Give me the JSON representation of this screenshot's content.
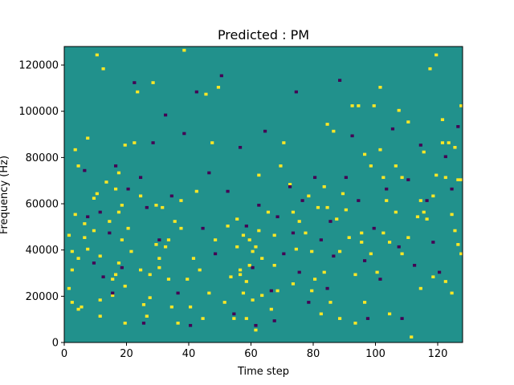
{
  "chart_data": {
    "type": "heatmap",
    "title": "Predicted : PM",
    "xlabel": "Time step",
    "ylabel": "Frequency (Hz)",
    "xlim": [
      0,
      128
    ],
    "ylim": [
      0,
      128000
    ],
    "x_ticks": [
      0,
      20,
      40,
      60,
      80,
      100,
      120
    ],
    "y_ticks": [
      0,
      20000,
      40000,
      60000,
      80000,
      100000,
      120000
    ],
    "x_tick_labels": [
      "0",
      "20",
      "40",
      "60",
      "80",
      "100",
      "120"
    ],
    "y_tick_labels": [
      "0",
      "20000",
      "40000",
      "60000",
      "80000",
      "100000",
      "120000"
    ],
    "grid": false,
    "colormap": "viridis",
    "colors": {
      "background": "#21918c",
      "high": "#fde725",
      "low": "#440154"
    },
    "cells_high": [
      [
        1,
        23
      ],
      [
        1,
        46
      ],
      [
        2,
        39
      ],
      [
        2,
        17
      ],
      [
        2,
        31
      ],
      [
        3,
        83
      ],
      [
        3,
        55
      ],
      [
        4,
        76
      ],
      [
        4,
        36
      ],
      [
        4,
        14
      ],
      [
        5,
        15
      ],
      [
        6,
        45
      ],
      [
        6,
        51
      ],
      [
        7,
        88
      ],
      [
        7,
        40
      ],
      [
        9,
        62
      ],
      [
        9,
        48
      ],
      [
        10,
        124
      ],
      [
        10,
        64
      ],
      [
        11,
        37
      ],
      [
        11,
        18
      ],
      [
        11,
        11
      ],
      [
        12,
        118
      ],
      [
        13,
        69
      ],
      [
        14,
        52
      ],
      [
        15,
        27
      ],
      [
        15,
        20
      ],
      [
        16,
        66
      ],
      [
        16,
        29
      ],
      [
        17,
        73
      ],
      [
        17,
        56
      ],
      [
        17,
        34
      ],
      [
        18,
        59
      ],
      [
        18,
        44
      ],
      [
        19,
        85
      ],
      [
        19,
        24
      ],
      [
        19,
        8
      ],
      [
        20,
        49
      ],
      [
        21,
        39
      ],
      [
        22,
        86
      ],
      [
        23,
        108
      ],
      [
        24,
        63
      ],
      [
        24,
        31
      ],
      [
        25,
        16
      ],
      [
        26,
        11
      ],
      [
        27,
        29
      ],
      [
        27,
        19
      ],
      [
        28,
        112
      ],
      [
        29,
        59
      ],
      [
        29,
        42
      ],
      [
        30,
        36
      ],
      [
        30,
        32
      ],
      [
        31,
        58
      ],
      [
        32,
        41
      ],
      [
        33,
        44
      ],
      [
        33,
        27
      ],
      [
        34,
        15
      ],
      [
        35,
        52
      ],
      [
        36,
        8
      ],
      [
        37,
        61
      ],
      [
        37,
        49
      ],
      [
        38,
        126
      ],
      [
        39,
        27
      ],
      [
        40,
        15
      ],
      [
        41,
        36
      ],
      [
        42,
        65
      ],
      [
        43,
        31
      ],
      [
        44,
        10
      ],
      [
        45,
        107
      ],
      [
        46,
        21
      ],
      [
        47,
        86
      ],
      [
        48,
        44
      ],
      [
        49,
        110
      ],
      [
        51,
        17
      ],
      [
        52,
        50
      ],
      [
        53,
        28
      ],
      [
        54,
        10
      ],
      [
        55,
        53
      ],
      [
        55,
        41
      ],
      [
        56,
        31
      ],
      [
        56,
        29
      ],
      [
        57,
        46
      ],
      [
        57,
        21
      ],
      [
        58,
        26
      ],
      [
        58,
        10
      ],
      [
        59,
        44
      ],
      [
        59,
        33
      ],
      [
        60,
        39
      ],
      [
        60,
        18
      ],
      [
        61,
        41
      ],
      [
        61,
        5
      ],
      [
        62,
        72
      ],
      [
        62,
        48
      ],
      [
        63,
        36
      ],
      [
        63,
        20
      ],
      [
        65,
        56
      ],
      [
        66,
        14
      ],
      [
        67,
        46
      ],
      [
        67,
        33
      ],
      [
        68,
        22
      ],
      [
        69,
        76
      ],
      [
        70,
        86
      ],
      [
        72,
        68
      ],
      [
        73,
        56
      ],
      [
        73,
        25
      ],
      [
        74,
        40
      ],
      [
        75,
        52
      ],
      [
        77,
        47
      ],
      [
        78,
        63
      ],
      [
        79,
        39
      ],
      [
        79,
        22
      ],
      [
        80,
        27
      ],
      [
        81,
        58
      ],
      [
        82,
        12
      ],
      [
        83,
        30
      ],
      [
        83,
        67
      ],
      [
        84,
        94
      ],
      [
        84,
        58
      ],
      [
        85,
        17
      ],
      [
        86,
        91
      ],
      [
        87,
        53
      ],
      [
        88,
        39
      ],
      [
        88,
        10
      ],
      [
        89,
        64
      ],
      [
        90,
        57
      ],
      [
        91,
        45
      ],
      [
        92,
        102
      ],
      [
        93,
        29
      ],
      [
        93,
        8
      ],
      [
        94,
        102
      ],
      [
        95,
        47
      ],
      [
        95,
        43
      ],
      [
        96,
        17
      ],
      [
        96,
        81
      ],
      [
        98,
        76
      ],
      [
        98,
        38
      ],
      [
        99,
        102
      ],
      [
        100,
        30
      ],
      [
        101,
        110
      ],
      [
        101,
        83
      ],
      [
        102,
        71
      ],
      [
        102,
        47
      ],
      [
        103,
        61
      ],
      [
        104,
        43
      ],
      [
        104,
        12
      ],
      [
        106,
        56
      ],
      [
        106,
        76
      ],
      [
        107,
        100
      ],
      [
        108,
        71
      ],
      [
        108,
        38
      ],
      [
        110,
        95
      ],
      [
        110,
        45
      ],
      [
        111,
        2
      ],
      [
        113,
        54
      ],
      [
        114,
        61
      ],
      [
        114,
        23
      ],
      [
        115,
        82
      ],
      [
        115,
        56
      ],
      [
        116,
        53
      ],
      [
        117,
        118
      ],
      [
        118,
        63
      ],
      [
        118,
        28
      ],
      [
        119,
        124
      ],
      [
        119,
        72
      ],
      [
        121,
        96
      ],
      [
        121,
        86
      ],
      [
        122,
        71
      ],
      [
        122,
        26
      ],
      [
        123,
        86
      ],
      [
        124,
        55
      ],
      [
        124,
        21
      ],
      [
        125,
        48
      ],
      [
        125,
        84
      ],
      [
        126,
        70
      ],
      [
        126,
        42
      ],
      [
        127,
        102
      ],
      [
        127,
        70
      ],
      [
        127,
        38
      ]
    ],
    "cells_low": [
      [
        6,
        74
      ],
      [
        7,
        54
      ],
      [
        9,
        34
      ],
      [
        11,
        56
      ],
      [
        12,
        28
      ],
      [
        14,
        47
      ],
      [
        15,
        21
      ],
      [
        16,
        76
      ],
      [
        18,
        32
      ],
      [
        20,
        66
      ],
      [
        22,
        112
      ],
      [
        24,
        71
      ],
      [
        25,
        8
      ],
      [
        26,
        58
      ],
      [
        28,
        86
      ],
      [
        30,
        44
      ],
      [
        32,
        98
      ],
      [
        34,
        63
      ],
      [
        36,
        21
      ],
      [
        38,
        90
      ],
      [
        40,
        7
      ],
      [
        42,
        108
      ],
      [
        44,
        49
      ],
      [
        46,
        73
      ],
      [
        48,
        38
      ],
      [
        50,
        115
      ],
      [
        52,
        65
      ],
      [
        54,
        12
      ],
      [
        56,
        84
      ],
      [
        58,
        50
      ],
      [
        60,
        32
      ],
      [
        61,
        7
      ],
      [
        62,
        59
      ],
      [
        64,
        91
      ],
      [
        66,
        22
      ],
      [
        67,
        9
      ],
      [
        68,
        54
      ],
      [
        70,
        38
      ],
      [
        72,
        67
      ],
      [
        73,
        47
      ],
      [
        74,
        108
      ],
      [
        75,
        30
      ],
      [
        76,
        61
      ],
      [
        78,
        17
      ],
      [
        80,
        71
      ],
      [
        82,
        44
      ],
      [
        84,
        23
      ],
      [
        85,
        52
      ],
      [
        86,
        37
      ],
      [
        88,
        113
      ],
      [
        90,
        71
      ],
      [
        92,
        89
      ],
      [
        94,
        61
      ],
      [
        96,
        35
      ],
      [
        97,
        10
      ],
      [
        99,
        49
      ],
      [
        101,
        27
      ],
      [
        103,
        66
      ],
      [
        105,
        92
      ],
      [
        107,
        41
      ],
      [
        108,
        10
      ],
      [
        110,
        70
      ],
      [
        112,
        33
      ],
      [
        114,
        85
      ],
      [
        116,
        61
      ],
      [
        118,
        43
      ],
      [
        120,
        30
      ],
      [
        122,
        80
      ],
      [
        124,
        66
      ],
      [
        126,
        93
      ]
    ]
  }
}
